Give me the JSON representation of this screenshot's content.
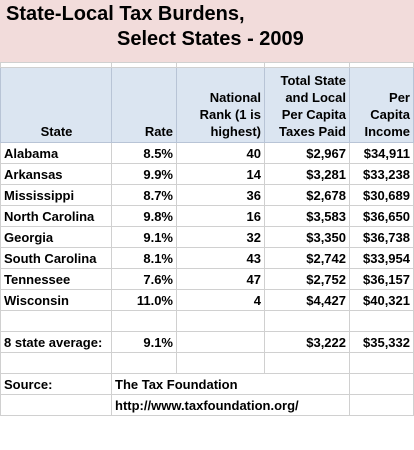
{
  "title": {
    "line1": "State-Local Tax Burdens,",
    "line2": "Select States - 2009"
  },
  "headers": {
    "state": "State",
    "rate": "Rate",
    "rank": "National Rank (1 is highest)",
    "taxes": "Total State and Local Per Capita Taxes Paid",
    "income": "Per Capita Income"
  },
  "rows": [
    {
      "state": "Alabama",
      "rate": "8.5%",
      "rank": "40",
      "taxes": "$2,967",
      "income": "$34,911"
    },
    {
      "state": "Arkansas",
      "rate": "9.9%",
      "rank": "14",
      "taxes": "$3,281",
      "income": "$33,238"
    },
    {
      "state": "Mississippi",
      "rate": "8.7%",
      "rank": "36",
      "taxes": "$2,678",
      "income": "$30,689"
    },
    {
      "state": "North Carolina",
      "rate": "9.8%",
      "rank": "16",
      "taxes": "$3,583",
      "income": "$36,650"
    },
    {
      "state": "Georgia",
      "rate": "9.1%",
      "rank": "32",
      "taxes": "$3,350",
      "income": "$36,738"
    },
    {
      "state": "South Carolina",
      "rate": "8.1%",
      "rank": "43",
      "taxes": "$2,742",
      "income": "$33,954"
    },
    {
      "state": "Tennessee",
      "rate": "7.6%",
      "rank": "47",
      "taxes": "$2,752",
      "income": "$36,157"
    },
    {
      "state": "Wisconsin",
      "rate": "11.0%",
      "rank": "4",
      "taxes": "$4,427",
      "income": "$40,321"
    }
  ],
  "average": {
    "label": "8 state average:",
    "rate": "9.1%",
    "taxes": "$3,222",
    "income": "$35,332"
  },
  "source": {
    "label": "Source:",
    "name": "The Tax Foundation",
    "url": "http://www.taxfoundation.org/"
  },
  "colors": {
    "title_band": "#f2dcdb",
    "header_fill": "#dbe5f1",
    "grid": "#d0d0d0"
  }
}
